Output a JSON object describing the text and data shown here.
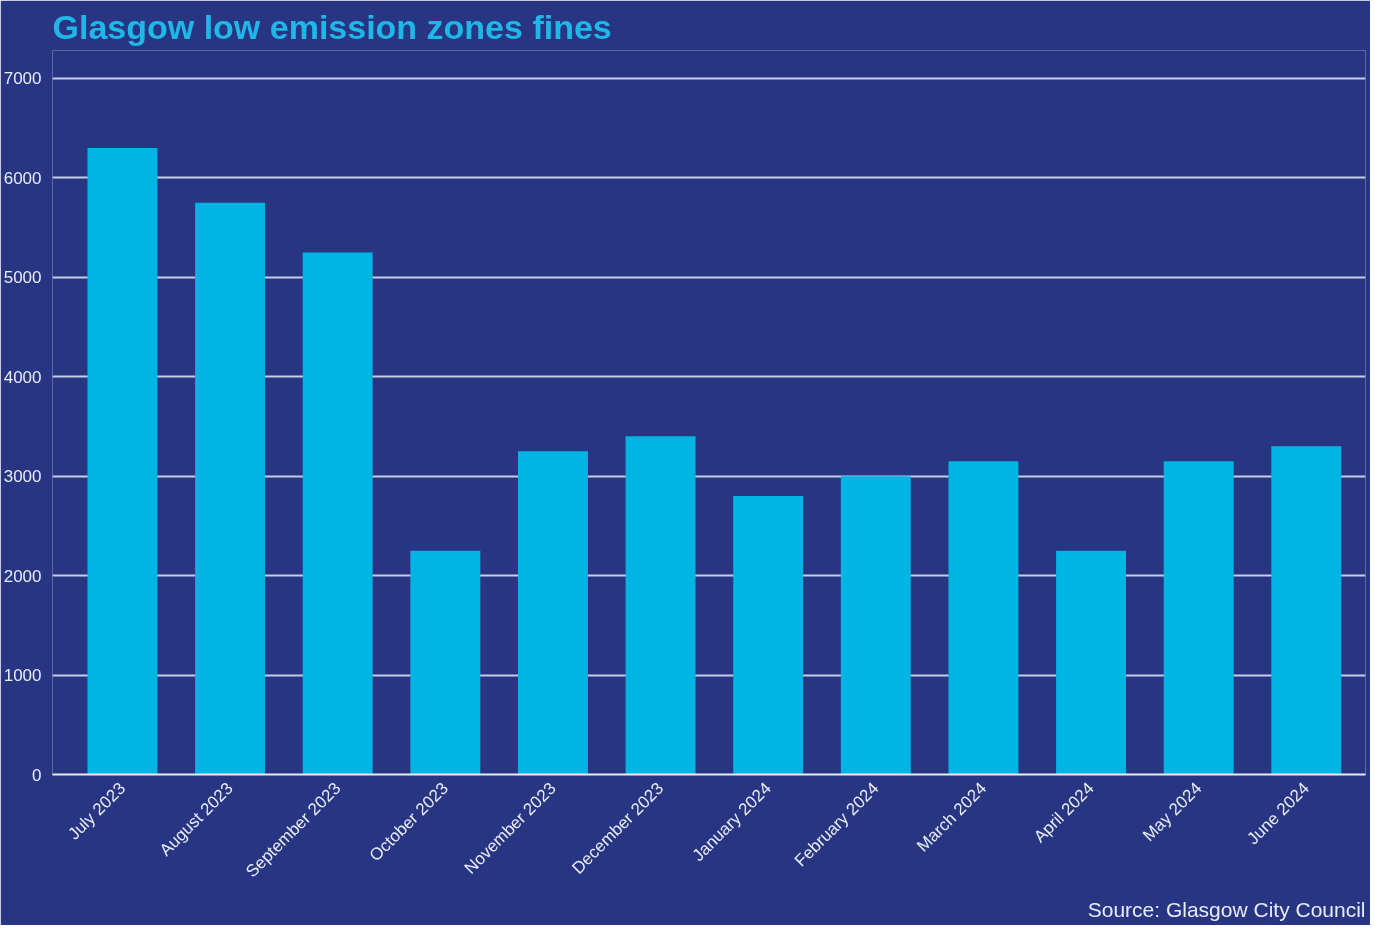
{
  "chart_data": {
    "type": "bar",
    "title": "Glasgow low emission zones fines",
    "categories": [
      "July 2023",
      "August 2023",
      "September 2023",
      "October 2023",
      "November 2023",
      "December 2023",
      "January 2024",
      "February 2024",
      "March 2024",
      "April 2024",
      "May 2024",
      "June 2024"
    ],
    "values": [
      6300,
      5750,
      5250,
      2250,
      3250,
      3400,
      2800,
      3000,
      3150,
      2250,
      3150,
      3300
    ],
    "color": "#00b4e3",
    "ylim": [
      0,
      7000
    ],
    "yticks": [
      0,
      1000,
      2000,
      3000,
      4000,
      5000,
      6000,
      7000
    ],
    "grid": "y",
    "annotations": [
      "Source: Glasgow City Council"
    ]
  }
}
